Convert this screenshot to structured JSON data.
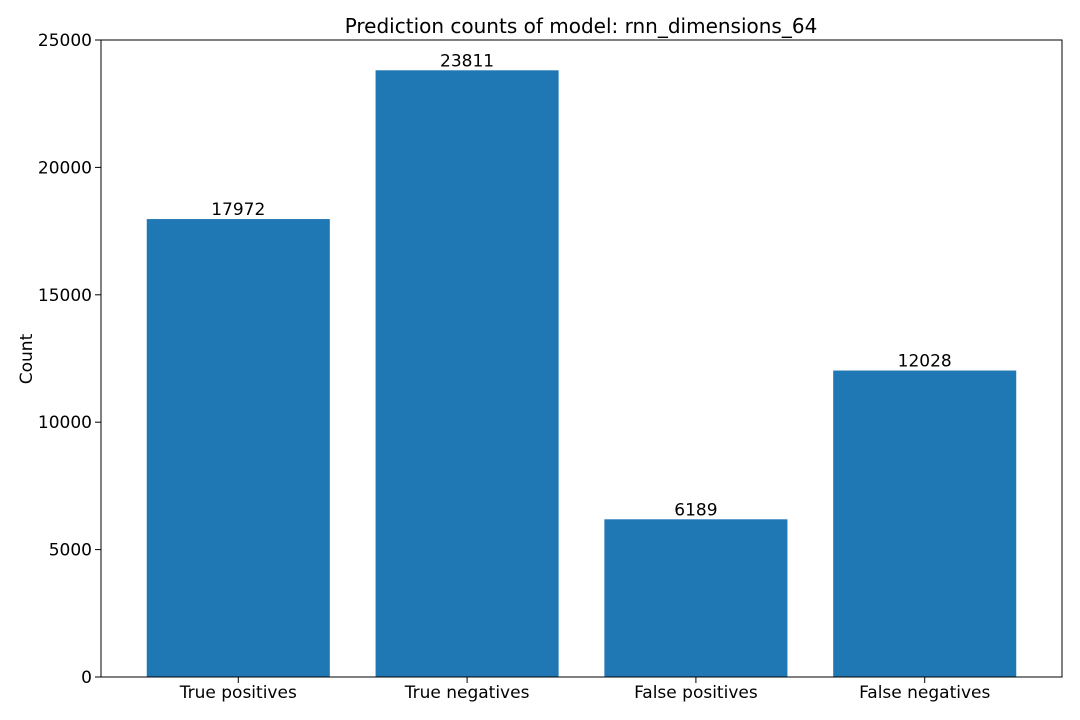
{
  "chart_data": {
    "type": "bar",
    "title": "Prediction counts of model: rnn_dimensions_64",
    "xlabel": "",
    "ylabel": "Count",
    "categories": [
      "True positives",
      "True negatives",
      "False positives",
      "False negatives"
    ],
    "values": [
      17972,
      23811,
      6189,
      12028
    ],
    "data_labels": [
      "17972",
      "23811",
      "6189",
      "12028"
    ],
    "ylim": [
      0,
      25000
    ],
    "yticks": [
      0,
      5000,
      10000,
      15000,
      20000,
      25000
    ],
    "ytick_labels": [
      "0",
      "5000",
      "10000",
      "15000",
      "20000",
      "25000"
    ],
    "bar_color": "#1f77b4",
    "grid": false,
    "legend": "none"
  }
}
